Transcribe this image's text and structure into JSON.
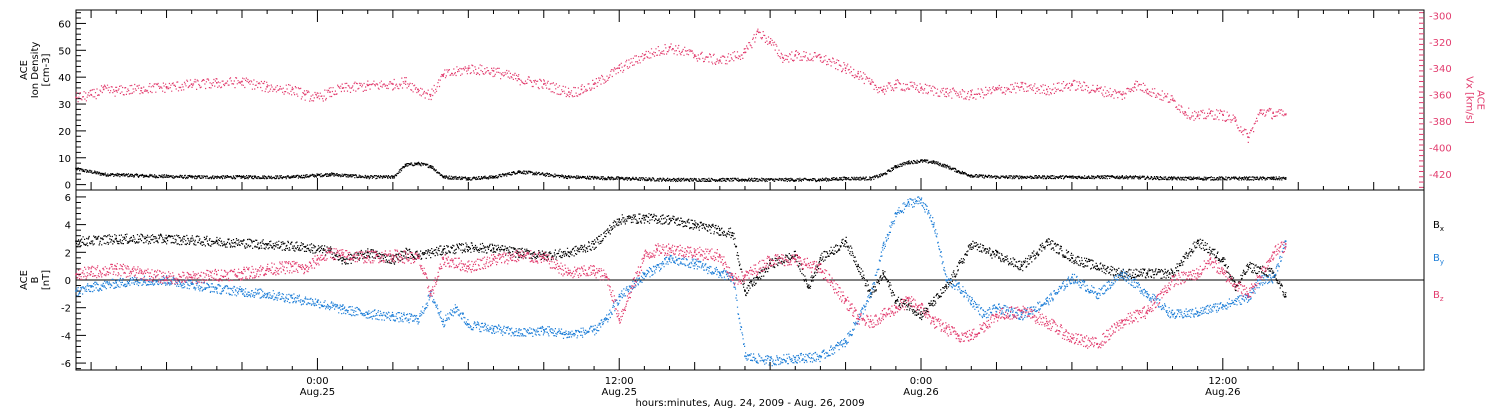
{
  "x_axis": {
    "label": "hours:minutes, Aug. 24, 2009 - Aug. 26, 2009",
    "ticks": [
      {
        "hour": 24,
        "time": "0:00",
        "date": "Aug.25"
      },
      {
        "hour": 36,
        "time": "12:00",
        "date": "Aug.25"
      },
      {
        "hour": 48,
        "time": "0:00",
        "date": "Aug.26"
      },
      {
        "hour": 60,
        "time": "12:00",
        "date": "Aug.26"
      }
    ],
    "range_hours": [
      14.4,
      68
    ]
  },
  "colors": {
    "black": "#000000",
    "pink": "#e23c6e",
    "blue": "#1f7fd8"
  },
  "chart_data": [
    {
      "type": "scatter",
      "title": "",
      "ylabel": "ACE\nIon Density\n[cm-3]",
      "ylim": [
        -2,
        65
      ],
      "yticks": [
        0,
        10,
        20,
        30,
        40,
        50,
        60
      ],
      "y2label": "ACE\nVx [km/s]",
      "y2lim": [
        -432,
        -296
      ],
      "y2ticks": [
        -300,
        -320,
        -340,
        -360,
        -380,
        -400,
        -420
      ],
      "series": [
        {
          "name": "",
          "axis": "left",
          "color": "#000000",
          "x": [
            14.4,
            15.5,
            17,
            19,
            21,
            23,
            24.5,
            26,
            27,
            27.5,
            28,
            28.5,
            29,
            30,
            31,
            32,
            34,
            36,
            38,
            40,
            42,
            44,
            45,
            46,
            46.5,
            47,
            47.5,
            48,
            48.5,
            49,
            49.5,
            50,
            51,
            52,
            54,
            56,
            58,
            60,
            61,
            62,
            62.5
          ],
          "y": [
            6,
            4,
            3.5,
            3,
            3,
            3,
            4,
            3,
            3,
            7.5,
            8,
            7,
            3,
            2.5,
            3,
            5,
            3,
            2.5,
            2,
            2,
            2,
            2,
            2.5,
            2.5,
            4,
            7,
            8.5,
            9,
            8.5,
            7,
            5,
            3.5,
            3,
            3,
            3,
            3,
            2.5,
            2.5,
            2.5,
            2.5,
            2.5
          ]
        },
        {
          "name": "",
          "axis": "right",
          "color": "#e23c6e",
          "x": [
            14.4,
            15,
            15.5,
            16,
            17,
            18,
            19,
            20,
            21,
            22,
            23,
            23.5,
            24,
            24.5,
            25,
            26,
            27,
            27.5,
            28,
            28.5,
            29,
            30,
            31,
            32,
            33,
            34,
            34.5,
            35,
            36,
            37,
            38,
            39,
            40,
            41,
            41.5,
            42,
            42.5,
            43,
            44,
            45,
            45.5,
            46,
            46.5,
            47,
            48,
            49,
            50,
            51,
            52,
            53,
            54,
            55,
            56,
            56.5,
            57,
            58,
            58.5,
            59,
            59.5,
            60,
            60.5,
            61,
            61.5,
            62,
            62.5
          ],
          "y": [
            -362,
            -360,
            -356,
            -357,
            -355,
            -354,
            -352,
            -351,
            -350,
            -354,
            -356,
            -360,
            -362,
            -358,
            -355,
            -353,
            -352,
            -350,
            -356,
            -360,
            -345,
            -340,
            -342,
            -348,
            -352,
            -358,
            -356,
            -352,
            -340,
            -330,
            -324,
            -330,
            -334,
            -328,
            -312,
            -320,
            -332,
            -330,
            -332,
            -340,
            -344,
            -352,
            -356,
            -352,
            -355,
            -358,
            -360,
            -356,
            -354,
            -356,
            -352,
            -356,
            -360,
            -352,
            -356,
            -364,
            -373,
            -376,
            -374,
            -375,
            -380,
            -392,
            -372,
            -374,
            -375
          ]
        }
      ]
    },
    {
      "type": "scatter",
      "title": "",
      "ylabel": "ACE\nB\n[nT]",
      "ylim": [
        -6.5,
        6.5
      ],
      "yticks": [
        -6,
        -4,
        -2,
        0,
        2,
        4,
        6
      ],
      "zero_line": true,
      "series": [
        {
          "name": "Bx",
          "color": "#000000",
          "x": [
            14.4,
            16,
            18,
            20,
            22,
            23.5,
            24.5,
            25,
            26,
            27,
            27.5,
            28,
            29,
            30,
            31,
            32,
            33,
            34,
            35,
            36,
            37,
            38,
            39,
            40,
            40.5,
            41,
            42,
            43,
            43.5,
            44,
            45,
            45.5,
            46,
            46.5,
            47,
            47.5,
            48,
            48.5,
            49,
            50,
            51,
            52,
            53,
            54,
            55,
            56,
            57,
            58,
            59,
            60,
            60.5,
            61,
            62,
            62.5
          ],
          "y": [
            2.8,
            3,
            3,
            2.8,
            2.6,
            2.4,
            2.1,
            1.4,
            2,
            1.5,
            2,
            1.8,
            2.2,
            2.4,
            2.3,
            2,
            1.8,
            2,
            2.6,
            4.4,
            4.5,
            4.4,
            4,
            3.6,
            3.4,
            -0.8,
            1.2,
            1.8,
            -0.5,
            1.6,
            2.8,
            1,
            -1,
            0.5,
            -1.5,
            -1.8,
            -2.5,
            -1.5,
            -0.5,
            2.6,
            1.8,
            1,
            2.8,
            1.6,
            1,
            0.5,
            0.5,
            0.5,
            2.8,
            1.5,
            -0.5,
            1,
            0.5,
            -1.2
          ]
        },
        {
          "name": "By",
          "color": "#1f7fd8",
          "x": [
            14.4,
            15,
            16,
            17,
            18,
            19,
            20,
            21,
            22,
            23,
            24,
            25,
            26,
            27,
            28,
            28.5,
            29,
            29.5,
            30,
            31,
            32,
            33,
            34,
            35,
            35.5,
            36,
            37,
            38,
            39,
            40,
            40.5,
            41,
            42,
            43,
            44,
            45,
            46,
            46.5,
            47,
            47.5,
            48,
            48.5,
            49,
            49.5,
            50,
            50.5,
            51,
            52,
            53,
            54,
            55,
            56,
            57,
            58,
            59,
            60,
            61,
            61.5,
            62,
            62.5
          ],
          "y": [
            -0.8,
            -0.5,
            -0.2,
            0,
            0,
            -0.3,
            -0.6,
            -0.8,
            -1,
            -1.3,
            -1.6,
            -2.1,
            -2.4,
            -2.6,
            -2.8,
            -1,
            -3,
            -2,
            -3.2,
            -3.5,
            -3.8,
            -3.6,
            -3.9,
            -3.6,
            -2.8,
            -1.2,
            0.4,
            1.5,
            1.2,
            0.5,
            0.2,
            -5.5,
            -5.8,
            -5.6,
            -5.5,
            -4.4,
            -1,
            2.5,
            4.8,
            5.6,
            5.8,
            4,
            0,
            -0.5,
            -1.5,
            -2.5,
            -2,
            -2.5,
            -1.5,
            0.2,
            -1,
            0.5,
            -1,
            -2.5,
            -2.3,
            -1.8,
            -1.2,
            0,
            0.2,
            2.8
          ]
        },
        {
          "name": "Bz",
          "color": "#e23c6e",
          "x": [
            14.4,
            15,
            16,
            17,
            18,
            19,
            20,
            21,
            22,
            23,
            23.5,
            24,
            24.5,
            25,
            26,
            27,
            28,
            28.5,
            29,
            30,
            31,
            32,
            33,
            34,
            35,
            35.5,
            36,
            37,
            37.5,
            38,
            39,
            40,
            40.5,
            41,
            42,
            43,
            44,
            45,
            45.5,
            46,
            46.5,
            47,
            47.5,
            48,
            48.5,
            49,
            49.5,
            50,
            51,
            52,
            53,
            54,
            55,
            56,
            57,
            58,
            59,
            59.5,
            60,
            61,
            62,
            62.5
          ],
          "y": [
            0.4,
            0.6,
            0.8,
            0.5,
            0.2,
            0.2,
            0.4,
            0.5,
            0.8,
            1,
            0.8,
            1.5,
            2,
            1.8,
            1.7,
            1.8,
            1.6,
            -1,
            1.5,
            1,
            1.5,
            1.8,
            1.6,
            0.5,
            0.7,
            0.2,
            -2.8,
            1.8,
            2.2,
            2.3,
            2,
            1.8,
            0,
            0.3,
            1.5,
            1.5,
            0.8,
            -1.5,
            -2.8,
            -3,
            -2.5,
            -2,
            -1.5,
            -2,
            -3,
            -3.5,
            -4,
            -4,
            -2.5,
            -2.2,
            -3,
            -4.2,
            -4.6,
            -3,
            -2.2,
            0,
            0.5,
            1.5,
            0.5,
            -1,
            2,
            2.6
          ]
        }
      ],
      "legend": [
        "Bx",
        "By",
        "Bz"
      ],
      "legend_position": "right"
    }
  ]
}
